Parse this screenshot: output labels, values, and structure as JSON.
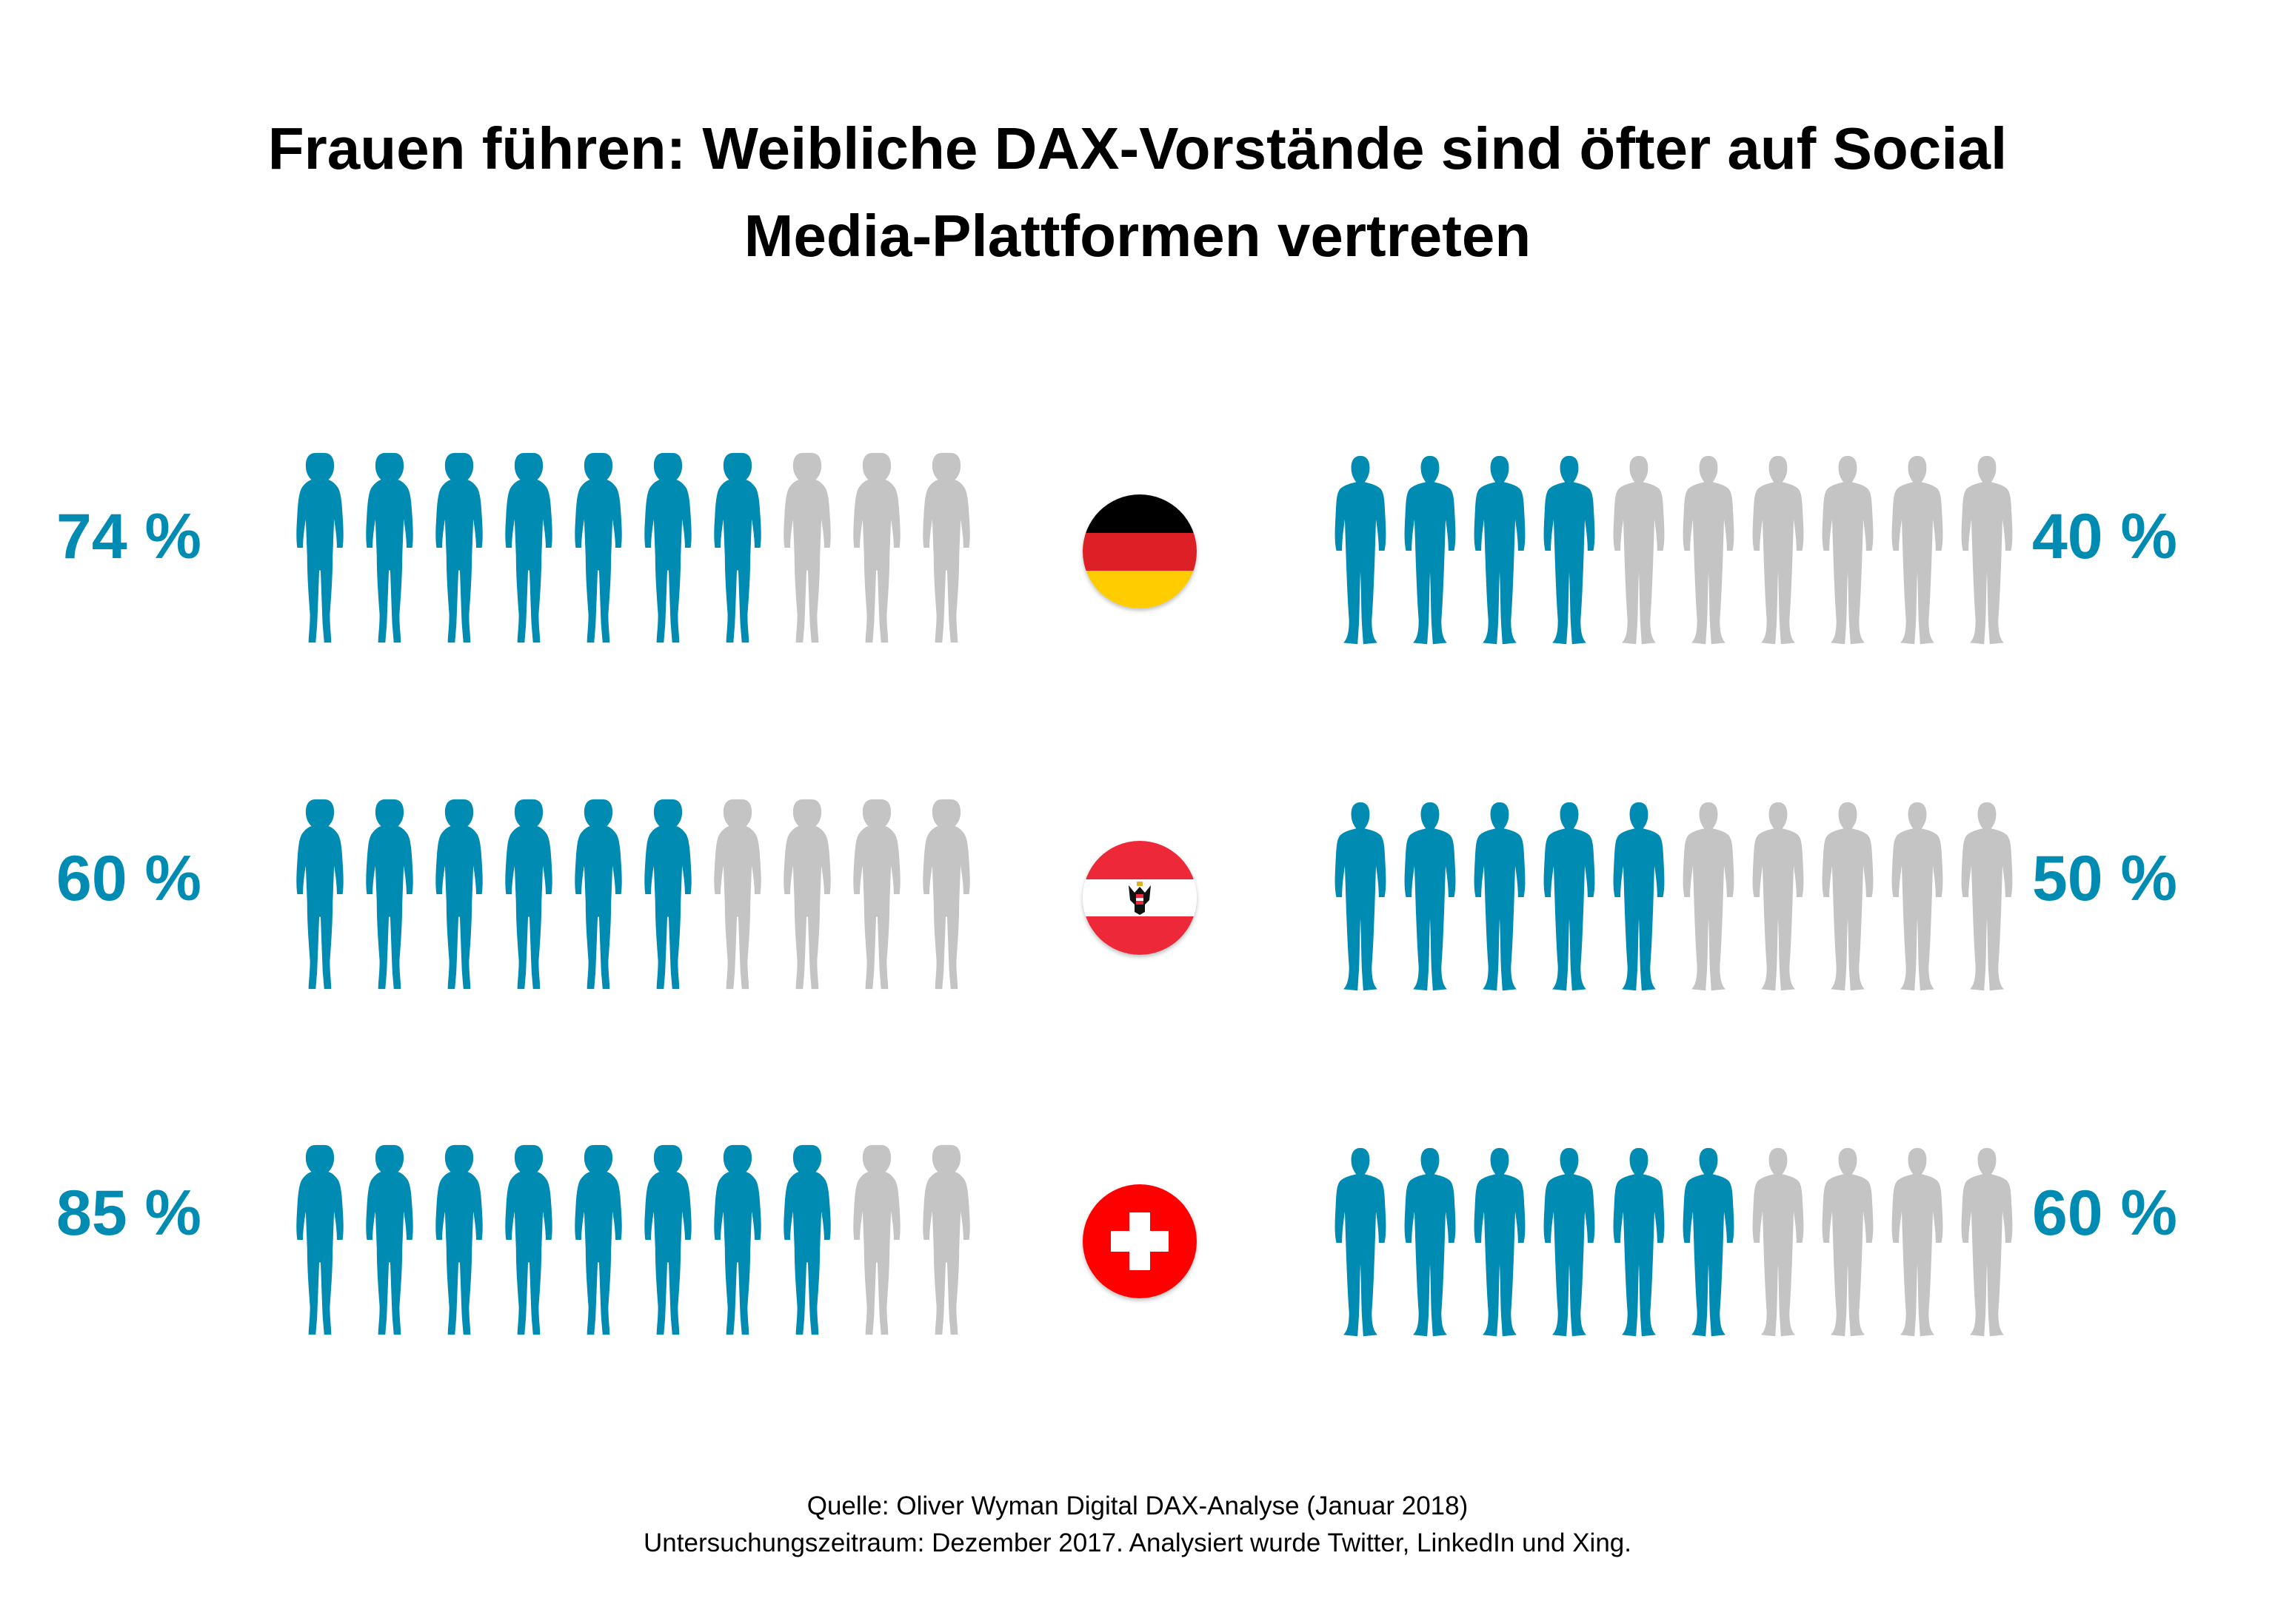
{
  "title_lines": [
    "Frauen führen: Weibliche DAX-Vorstände sind öfter auf Social",
    "Media-Plattformen vertreten"
  ],
  "source_lines": [
    "Quelle: Oliver Wyman Digital DAX-Analyse (Januar 2018)",
    "Untersuchungszeitraum: Dezember 2017. Analysiert wurde Twitter, LinkedIn und Xing."
  ],
  "colors": {
    "highlight": "#008bb3",
    "muted": "#c4c4c4"
  },
  "chart_data": {
    "type": "pictogram",
    "icons_per_row": 10,
    "rows": [
      {
        "flag": "germany-flag",
        "women_label": "74 %",
        "women_value": 74,
        "women_icons_filled": 7,
        "men_label": "40 %",
        "men_value": 40,
        "men_icons_filled": 4
      },
      {
        "flag": "austria-flag",
        "women_label": "60 %",
        "women_value": 60,
        "women_icons_filled": 6,
        "men_label": "50 %",
        "men_value": 50,
        "men_icons_filled": 5
      },
      {
        "flag": "switzerland-flag",
        "women_label": "85 %",
        "women_value": 85,
        "women_icons_filled": 8,
        "men_label": "60 %",
        "men_value": 60,
        "men_icons_filled": 6
      }
    ]
  }
}
